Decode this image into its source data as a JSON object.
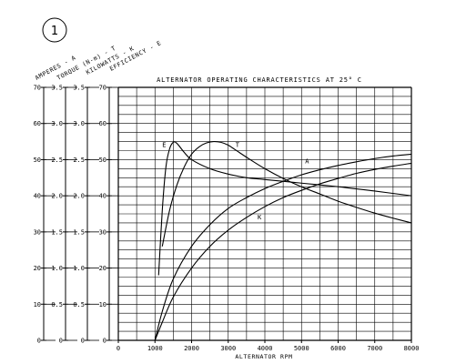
{
  "badge": "1",
  "chart_data": {
    "type": "line",
    "title": "ALTERNATOR OPERATING CHARACTERISTICS AT 25° C",
    "xlabel": "ALTERNATOR RPM",
    "xlim": [
      0,
      8000
    ],
    "x_ticks": [
      "0",
      "1000",
      "2000",
      "3000",
      "4000",
      "5000",
      "6000",
      "7000",
      "8000"
    ],
    "grid": true,
    "y_axes": [
      {
        "label": "AMPERES - A",
        "ylim": [
          0,
          70
        ],
        "ticks": [
          "0",
          "10",
          "20",
          "30",
          "40",
          "50",
          "60",
          "70"
        ]
      },
      {
        "label": "TORQUE (N-m) - T",
        "ylim": [
          0,
          3.5
        ],
        "ticks": [
          "0",
          "0.5",
          "1.0",
          "1.5",
          "2.0",
          "2.5",
          "3.0",
          "3.5"
        ]
      },
      {
        "label": "KILOWATTS - K",
        "ylim": [
          0,
          3.5
        ],
        "ticks": [
          "0",
          "0.5",
          "1.0",
          "1.5",
          "2.0",
          "2.5",
          "3.0",
          "3.5"
        ]
      },
      {
        "label": "EFFICIENCY - E",
        "ylim": [
          0,
          70
        ],
        "ticks": [
          "0",
          "10",
          "20",
          "30",
          "40",
          "50",
          "60",
          "70"
        ]
      }
    ],
    "series": [
      {
        "name": "A",
        "label_at": [
          5100,
          49
        ],
        "x": [
          1000,
          1200,
          1500,
          2000,
          2500,
          3000,
          3500,
          4000,
          4500,
          5000,
          5500,
          6000,
          6500,
          7000,
          7500,
          8000
        ],
        "y": [
          0,
          8,
          17,
          26,
          32,
          36.5,
          39.5,
          42,
          44,
          45.8,
          47.2,
          48.4,
          49.4,
          50.3,
          51,
          51.5
        ]
      },
      {
        "name": "K",
        "label_at": [
          3800,
          33.5
        ],
        "x": [
          1000,
          1200,
          1500,
          2000,
          2500,
          3000,
          3500,
          4000,
          4500,
          5000,
          5500,
          6000,
          6500,
          7000,
          7500,
          8000
        ],
        "y": [
          0,
          5,
          12,
          20,
          26,
          30.5,
          34,
          37,
          39.5,
          41.5,
          43.3,
          44.8,
          46.2,
          47.3,
          48.2,
          49
        ]
      },
      {
        "name": "T",
        "label_at": [
          3200,
          53.5
        ],
        "x": [
          1200,
          1400,
          1600,
          1800,
          2000,
          2200,
          2400,
          2600,
          2800,
          3000,
          3300,
          3600,
          4000,
          4500,
          5000,
          5500,
          6000,
          6500,
          7000,
          7500,
          8000
        ],
        "y": [
          26,
          36,
          43,
          48,
          51.5,
          53.5,
          54.6,
          55,
          54.8,
          54,
          52,
          50,
          47.5,
          44.8,
          42.5,
          40.5,
          38.5,
          36.8,
          35.2,
          33.8,
          32.5
        ]
      },
      {
        "name": "E",
        "label_at": [
          1200,
          53.5
        ],
        "x": [
          1100,
          1200,
          1300,
          1400,
          1500,
          1600,
          1800,
          2000,
          2500,
          3000,
          3500,
          4000,
          5000,
          6000,
          7000,
          8000
        ],
        "y": [
          18,
          36,
          48,
          53,
          54.8,
          54.5,
          52,
          50,
          47.5,
          46,
          45,
          44.5,
          43.5,
          42.5,
          41.3,
          40
        ]
      }
    ]
  }
}
